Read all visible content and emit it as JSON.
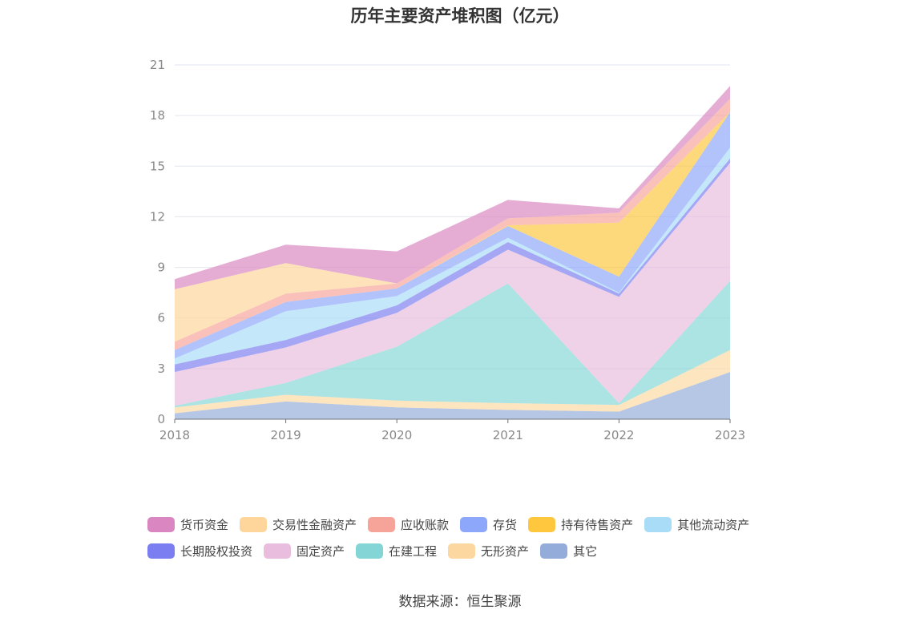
{
  "title": "历年主要资产堆积图（亿元）",
  "source": "数据来源：恒生聚源",
  "chart_data": {
    "type": "area",
    "stacked": true,
    "title": "历年主要资产堆积图（亿元）",
    "xlabel": "",
    "ylabel": "",
    "categories": [
      "2018",
      "2019",
      "2020",
      "2021",
      "2022",
      "2023"
    ],
    "ylim": [
      0,
      21
    ],
    "yticks": [
      "0",
      "3",
      "6",
      "9",
      "12",
      "15",
      "18",
      "21"
    ],
    "grid": true,
    "legend_position": "bottom",
    "series": [
      {
        "name": "其它",
        "color": "#93acd9",
        "values": [
          0.35,
          1.05,
          0.7,
          0.55,
          0.45,
          2.8
        ]
      },
      {
        "name": "无形资产",
        "color": "#fcd8a0",
        "values": [
          0.35,
          0.4,
          0.4,
          0.4,
          0.4,
          1.3
        ]
      },
      {
        "name": "在建工程",
        "color": "#84d6d6",
        "values": [
          0.1,
          0.7,
          3.2,
          7.1,
          0.1,
          4.1
        ]
      },
      {
        "name": "固定资产",
        "color": "#e8bddd",
        "values": [
          2.0,
          2.1,
          2.0,
          2.0,
          6.3,
          7.0
        ]
      },
      {
        "name": "长期股权投资",
        "color": "#7b7ef0",
        "values": [
          0.45,
          0.45,
          0.45,
          0.45,
          0.2,
          0.25
        ]
      },
      {
        "name": "其他流动资产",
        "color": "#a8dcf7",
        "values": [
          0.35,
          1.7,
          0.55,
          0.25,
          0.05,
          0.65
        ]
      },
      {
        "name": "存货",
        "color": "#8da7fb",
        "values": [
          0.5,
          0.55,
          0.45,
          0.7,
          0.95,
          2.1
        ]
      },
      {
        "name": "持有待售资产",
        "color": "#fec73d",
        "values": [
          0.0,
          0.0,
          0.0,
          0.05,
          3.2,
          0.0
        ]
      },
      {
        "name": "应收账款",
        "color": "#f6a39a",
        "values": [
          0.5,
          0.5,
          0.3,
          0.4,
          0.6,
          0.8
        ]
      },
      {
        "name": "交易性金融资产",
        "color": "#fed59a",
        "values": [
          3.1,
          1.8,
          0.0,
          0.0,
          0.0,
          0.0
        ]
      },
      {
        "name": "货币资金",
        "color": "#da86c0",
        "values": [
          0.6,
          1.1,
          1.9,
          1.1,
          0.25,
          0.75
        ]
      }
    ]
  },
  "legend": {
    "rows": [
      [
        {
          "label": "货币资金",
          "color": "#da86c0"
        },
        {
          "label": "交易性金融资产",
          "color": "#fed59a"
        },
        {
          "label": "应收账款",
          "color": "#f6a39a"
        },
        {
          "label": "存货",
          "color": "#8da7fb"
        },
        {
          "label": "持有待售资产",
          "color": "#fec73d"
        },
        {
          "label": "其他流动资产",
          "color": "#a8dcf7"
        }
      ],
      [
        {
          "label": "长期股权投资",
          "color": "#7b7ef0"
        },
        {
          "label": "固定资产",
          "color": "#e8bddd"
        },
        {
          "label": "在建工程",
          "color": "#84d6d6"
        },
        {
          "label": "无形资产",
          "color": "#fcd8a0"
        },
        {
          "label": "其它",
          "color": "#93acd9"
        }
      ]
    ]
  }
}
